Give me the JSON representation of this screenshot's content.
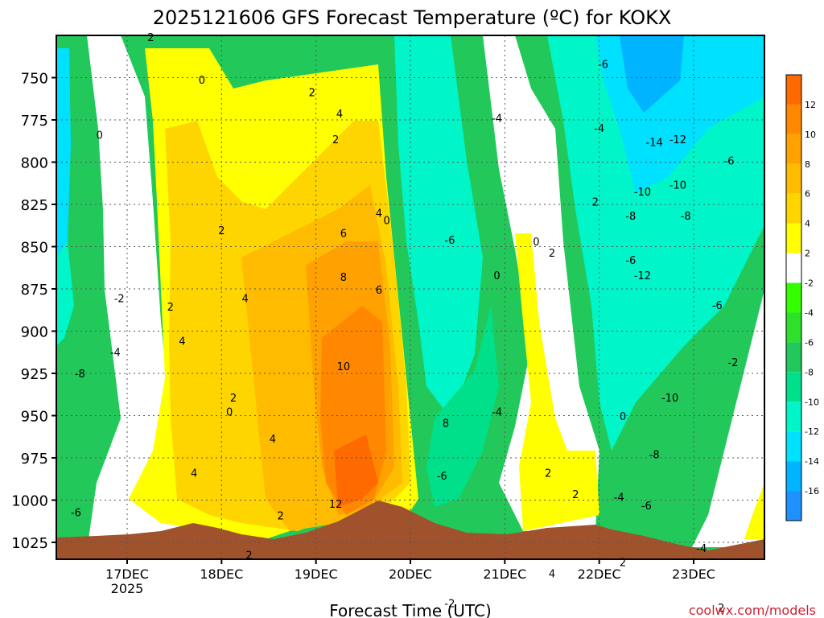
{
  "chart_data": {
    "type": "heatmap",
    "title": "2025121606 GFS Forecast Temperature (ºC) for KOKX",
    "xlabel": "Forecast Time (UTC)",
    "credit": "coolwx.com/models",
    "x_ticks": [
      {
        "label": "17DEC",
        "sublabel": "2025",
        "hours": 24
      },
      {
        "label": "18DEC",
        "sublabel": "",
        "hours": 48
      },
      {
        "label": "19DEC",
        "sublabel": "",
        "hours": 72
      },
      {
        "label": "20DEC",
        "sublabel": "",
        "hours": 96
      },
      {
        "label": "21DEC",
        "sublabel": "",
        "hours": 120
      },
      {
        "label": "22DEC",
        "sublabel": "",
        "hours": 144
      },
      {
        "label": "23DEC",
        "sublabel": "",
        "hours": 168
      }
    ],
    "xlim_hours": [
      6,
      186
    ],
    "y_ticks": [
      "750",
      "775",
      "800",
      "825",
      "850",
      "875",
      "900",
      "925",
      "950",
      "975",
      "1000",
      "1025"
    ],
    "ylim_hpa": [
      725,
      1035
    ],
    "y_values_hpa": [
      750,
      775,
      800,
      825,
      850,
      875,
      900,
      925,
      950,
      975,
      1000,
      1025
    ],
    "colorbar": {
      "labels": [
        "12",
        "10",
        "8",
        "6",
        "4",
        "2",
        "-2",
        "-4",
        "-6",
        "-8",
        "-10",
        "-12",
        "-14",
        "-16"
      ],
      "bands": [
        {
          "color": "#ff6a00"
        },
        {
          "color": "#ff8800"
        },
        {
          "color": "#ffa100"
        },
        {
          "color": "#ffbb00"
        },
        {
          "color": "#ffd500"
        },
        {
          "color": "#ffff00"
        },
        {
          "color": "#ffffff"
        },
        {
          "color": "#33ff00"
        },
        {
          "color": "#2ce02c"
        },
        {
          "color": "#22c95a"
        },
        {
          "color": "#00e08a"
        },
        {
          "color": "#00f5c8"
        },
        {
          "color": "#00e0ff"
        },
        {
          "color": "#00b4ff"
        },
        {
          "color": "#1e90ff"
        }
      ]
    },
    "grid": true,
    "terrain_color": "#a0522d",
    "contour_labels": [
      {
        "text": "2",
        "t": 30,
        "p": 736
      },
      {
        "text": "0",
        "t": 43,
        "p": 766
      },
      {
        "text": "2",
        "t": 71,
        "p": 775
      },
      {
        "text": "4",
        "t": 78,
        "p": 790
      },
      {
        "text": "2",
        "t": 77,
        "p": 808
      },
      {
        "text": "0",
        "t": 17,
        "p": 805
      },
      {
        "text": "-4",
        "t": 118,
        "p": 793
      },
      {
        "text": "-6",
        "t": 145,
        "p": 755
      },
      {
        "text": "-4",
        "t": 144,
        "p": 800
      },
      {
        "text": "-14",
        "t": 158,
        "p": 810
      },
      {
        "text": "-12",
        "t": 164,
        "p": 808
      },
      {
        "text": "-6",
        "t": 177,
        "p": 823
      },
      {
        "text": "-10",
        "t": 155,
        "p": 845
      },
      {
        "text": "-10",
        "t": 164,
        "p": 840
      },
      {
        "text": "2",
        "t": 143,
        "p": 852
      },
      {
        "text": "-8",
        "t": 152,
        "p": 862
      },
      {
        "text": "-8",
        "t": 166,
        "p": 862
      },
      {
        "text": "4",
        "t": 88,
        "p": 860
      },
      {
        "text": "0",
        "t": 90,
        "p": 865
      },
      {
        "text": "2",
        "t": 48,
        "p": 872
      },
      {
        "text": "6",
        "t": 79,
        "p": 874
      },
      {
        "text": "-6",
        "t": 106,
        "p": 879
      },
      {
        "text": "0",
        "t": 128,
        "p": 880
      },
      {
        "text": "2",
        "t": 132,
        "p": 888
      },
      {
        "text": "-6",
        "t": 152,
        "p": 893
      },
      {
        "text": "-12",
        "t": 155,
        "p": 904
      },
      {
        "text": "8",
        "t": 79,
        "p": 905
      },
      {
        "text": "0",
        "t": 118,
        "p": 904
      },
      {
        "text": "6",
        "t": 88,
        "p": 914
      },
      {
        "text": "-2",
        "t": 22,
        "p": 920
      },
      {
        "text": "4",
        "t": 54,
        "p": 920
      },
      {
        "text": "2",
        "t": 35,
        "p": 926
      },
      {
        "text": "-6",
        "t": 174,
        "p": 925
      },
      {
        "text": "4",
        "t": 38,
        "p": 950
      },
      {
        "text": "-4",
        "t": 21,
        "p": 958
      },
      {
        "text": "10",
        "t": 79,
        "p": 968
      },
      {
        "text": "-2",
        "t": 178,
        "p": 965
      },
      {
        "text": "-8",
        "t": 12,
        "p": 973
      },
      {
        "text": "2",
        "t": 51,
        "p": 990
      },
      {
        "text": "0",
        "t": 50,
        "p": 1000
      },
      {
        "text": "-10",
        "t": 162,
        "p": 990
      },
      {
        "text": "-4",
        "t": 118,
        "p": 1000
      },
      {
        "text": "0",
        "t": 150,
        "p": 1003
      },
      {
        "text": "8",
        "t": 105,
        "p": 1008
      },
      {
        "text": "4",
        "t": 61,
        "p": 1019
      },
      {
        "text": "-8",
        "t": 158,
        "p": 1030
      },
      {
        "text": "2",
        "t": 131,
        "p": 1043
      },
      {
        "text": "4",
        "t": 41,
        "p": 1043
      },
      {
        "text": "-6",
        "t": 104,
        "p": 1045
      },
      {
        "text": "2",
        "t": 138,
        "p": 1058
      },
      {
        "text": "-4",
        "t": 149,
        "p": 1060
      },
      {
        "text": "12",
        "t": 77,
        "p": 1065
      },
      {
        "text": "-6",
        "t": 11,
        "p": 1071
      },
      {
        "text": "-6",
        "t": 156,
        "p": 1066
      },
      {
        "text": "2",
        "t": 63,
        "p": 1073
      },
      {
        "text": "2",
        "t": 55,
        "p": 1101
      },
      {
        "text": "-4",
        "t": 170,
        "p": 1096
      },
      {
        "text": "2",
        "t": 150,
        "p": 1106
      },
      {
        "text": "4",
        "t": 132,
        "p": 1114
      },
      {
        "text": "-2",
        "t": 106,
        "p": 1135
      },
      {
        "text": "2",
        "t": 175,
        "p": 1138
      }
    ]
  }
}
